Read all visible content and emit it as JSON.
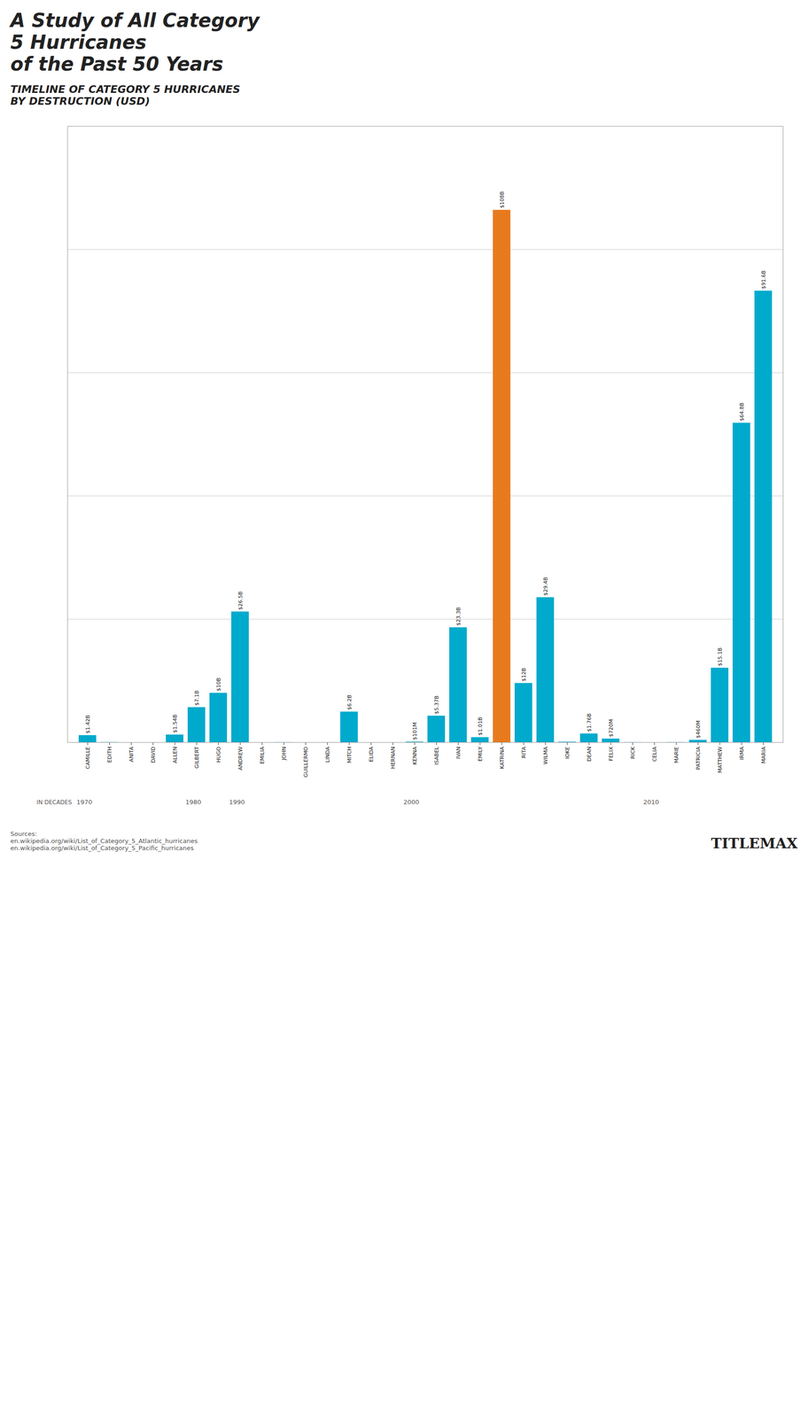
{
  "chart_data": {
    "type": "bar",
    "title": "A Study of All Category\n5 Hurricanes\nof the Past 50 Years",
    "subtitle": "TIMELINE OF CATEGORY 5 HURRICANES\nBY DESTRUCTION (USD)",
    "categories": [
      "CAMILLE",
      "EDITH",
      "ANITA",
      "DAVID",
      "ALLEN",
      "GILBERT",
      "HUGO",
      "ANDREW",
      "EMILIA",
      "JOHN",
      "GUILLERMO",
      "LINDA",
      "MITCH",
      "ELIDA",
      "HERNAN",
      "KENNA",
      "ISABEL",
      "IVAN",
      "EMILY",
      "KATRINA",
      "RITA",
      "WILMA",
      "IOKE",
      "DEAN",
      "FELIX",
      "RICK",
      "CELIA",
      "MARIE",
      "PATRICIA",
      "MATTHEW",
      "IRMA",
      "MARIA"
    ],
    "values": [
      1.42,
      0.0254,
      0,
      0,
      1.54,
      7.1,
      10,
      26.5,
      0,
      0.015,
      0,
      0.0032,
      6.2,
      0,
      0,
      0.101,
      5.37,
      23.3,
      1.01,
      108,
      12,
      29.4,
      0.088,
      1.76,
      0.72,
      0.0146,
      0,
      0.02,
      0.46,
      15.1,
      64.8,
      91.6
    ],
    "value_labels": [
      "$1.42B",
      null,
      null,
      null,
      "$1.54B",
      "$7.1B",
      "$10B",
      "$26.5B",
      null,
      null,
      null,
      null,
      "$6.2B",
      null,
      null,
      "$101M",
      "$5.37B",
      "$23.3B",
      "$1.01B",
      "$108B",
      "$12B",
      "$29.4B",
      null,
      "$1.76B",
      "$720M",
      null,
      null,
      null,
      "$460M",
      "$15.1B",
      "$64.8B",
      "$91.6B"
    ],
    "colors": [
      "#00aacc",
      "#00aacc",
      "#00aacc",
      "#00aacc",
      "#00aacc",
      "#00aacc",
      "#00aacc",
      "#00aacc",
      "#00aacc",
      "#00aacc",
      "#00aacc",
      "#00aacc",
      "#00aacc",
      "#00aacc",
      "#00aacc",
      "#00aacc",
      "#00aacc",
      "#00aacc",
      "#00aacc",
      "#e87a1e",
      "#00aacc",
      "#00aacc",
      "#00aacc",
      "#00aacc",
      "#00aacc",
      "#00aacc",
      "#00aacc",
      "#00aacc",
      "#00aacc",
      "#00aacc",
      "#00aacc",
      "#00aacc"
    ],
    "data_labels": true,
    "ylim": [
      0,
      125
    ],
    "yticks": [
      25,
      50,
      75,
      100
    ],
    "grid": true,
    "tick_labels": "x",
    "xlabel": "IN DECADES",
    "annotations": [
      {
        "text": "1970",
        "category": "CAMILLE"
      },
      {
        "text": "1980",
        "category": "GILBERT"
      },
      {
        "text": "1990",
        "category": "ANDREW"
      },
      {
        "text": "2000",
        "category": "KENNA"
      },
      {
        "text": "2010",
        "category": "CELIA"
      },
      {
        "text": "Sources:\nen.wikipedia.org/wiki/List_of_Category_5_Atlantic_hurricanes\nen.wikipedia.org/wiki/List_of_Category_5_Pacific_hurricanes"
      },
      {
        "text": "TITLEMAX"
      }
    ]
  }
}
